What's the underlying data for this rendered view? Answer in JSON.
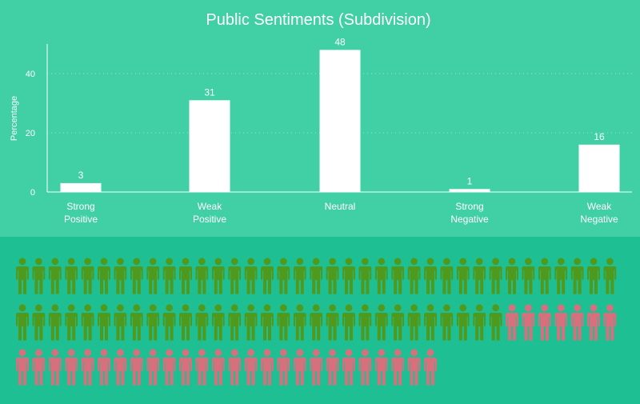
{
  "colors": {
    "chart_bg": "#41cfa6",
    "lower_bg": "#1fbf94",
    "bar": "#ffffff",
    "text": "#ffffff",
    "positive_person": "#4f9a1c",
    "negative_person": "#d7707c"
  },
  "chart_data": {
    "type": "bar",
    "title": "Public Sentiments (Subdivision)",
    "xlabel": "",
    "ylabel": "Percentage",
    "categories": [
      [
        "Strong",
        "Positive"
      ],
      [
        "Weak",
        "Positive"
      ],
      [
        "Neutral"
      ],
      [
        "Strong",
        "Negative"
      ],
      [
        "Weak",
        "Negative"
      ]
    ],
    "values": [
      3,
      31,
      48,
      1,
      16
    ],
    "data_labels": [
      "3",
      "31",
      "48",
      "1",
      "16"
    ],
    "yticks": [
      0,
      20,
      40
    ],
    "ylim": [
      0,
      50
    ],
    "grid": true,
    "grid_style": "dotted",
    "legend": "none"
  },
  "pictogram": {
    "icon": "person-icon",
    "rows": [
      {
        "green": 37,
        "pink": 0
      },
      {
        "green": 30,
        "pink": 7
      },
      {
        "green": 0,
        "pink": 26
      }
    ]
  }
}
